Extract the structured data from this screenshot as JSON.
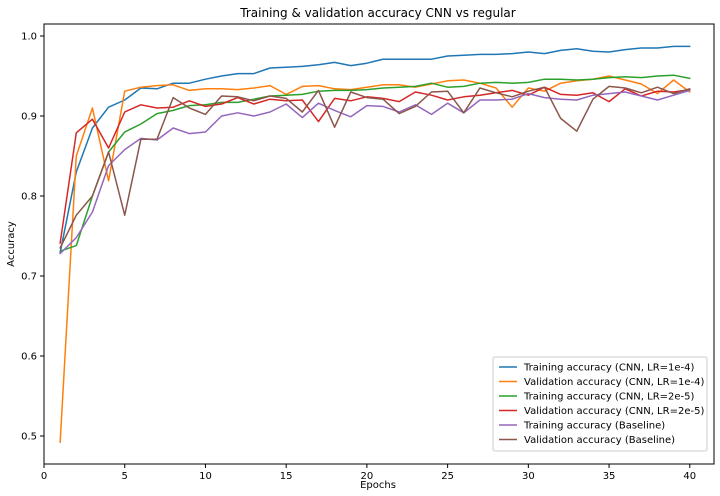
{
  "chart_data": {
    "type": "line",
    "title": "Training & validation accuracy CNN vs regular",
    "xlabel": "Epochs",
    "ylabel": "Accuracy",
    "xlim": [
      0,
      41.5
    ],
    "ylim": [
      0.465,
      1.015
    ],
    "xticks": [
      0,
      5,
      10,
      15,
      20,
      25,
      30,
      35,
      40
    ],
    "yticks": [
      0.5,
      0.6,
      0.7,
      0.8,
      0.9,
      1.0
    ],
    "ytick_labels": [
      "0.5",
      "0.6",
      "0.7",
      "0.8",
      "0.9",
      "1.0"
    ],
    "grid": false,
    "legend_position": "lower-right",
    "x": [
      1,
      2,
      3,
      4,
      5,
      6,
      7,
      8,
      9,
      10,
      11,
      12,
      13,
      14,
      15,
      16,
      17,
      18,
      19,
      20,
      21,
      22,
      23,
      24,
      25,
      26,
      27,
      28,
      29,
      30,
      31,
      32,
      33,
      34,
      35,
      36,
      37,
      38,
      39,
      40
    ],
    "series": [
      {
        "name": "Training accuracy (CNN, LR=1e-4)",
        "color": "#1f77b4",
        "values": [
          0.729,
          0.83,
          0.885,
          0.911,
          0.92,
          0.935,
          0.934,
          0.941,
          0.941,
          0.946,
          0.95,
          0.953,
          0.953,
          0.96,
          0.961,
          0.962,
          0.964,
          0.967,
          0.963,
          0.966,
          0.971,
          0.971,
          0.971,
          0.971,
          0.975,
          0.976,
          0.977,
          0.977,
          0.978,
          0.98,
          0.978,
          0.982,
          0.984,
          0.981,
          0.98,
          0.983,
          0.985,
          0.985,
          0.987,
          0.987
        ]
      },
      {
        "name": "Validation accuracy (CNN, LR=1e-4)",
        "color": "#ff7f0e",
        "values": [
          0.492,
          0.85,
          0.91,
          0.819,
          0.931,
          0.936,
          0.938,
          0.939,
          0.932,
          0.934,
          0.934,
          0.933,
          0.935,
          0.938,
          0.927,
          0.937,
          0.938,
          0.934,
          0.933,
          0.936,
          0.939,
          0.939,
          0.936,
          0.94,
          0.944,
          0.945,
          0.941,
          0.935,
          0.911,
          0.935,
          0.931,
          0.941,
          0.944,
          0.946,
          0.95,
          0.945,
          0.94,
          0.928,
          0.945,
          0.93
        ]
      },
      {
        "name": "Training accuracy (CNN, LR=2e-5)",
        "color": "#2ca02c",
        "values": [
          0.731,
          0.738,
          0.8,
          0.855,
          0.88,
          0.89,
          0.903,
          0.907,
          0.913,
          0.914,
          0.917,
          0.917,
          0.921,
          0.925,
          0.926,
          0.927,
          0.931,
          0.932,
          0.932,
          0.933,
          0.935,
          0.936,
          0.937,
          0.941,
          0.936,
          0.937,
          0.941,
          0.942,
          0.941,
          0.942,
          0.946,
          0.946,
          0.945,
          0.946,
          0.948,
          0.949,
          0.948,
          0.95,
          0.951,
          0.947
        ]
      },
      {
        "name": "Validation accuracy (CNN, LR=2e-5)",
        "color": "#d62728",
        "values": [
          0.741,
          0.879,
          0.896,
          0.86,
          0.905,
          0.914,
          0.91,
          0.911,
          0.919,
          0.912,
          0.915,
          0.923,
          0.915,
          0.921,
          0.919,
          0.92,
          0.893,
          0.922,
          0.919,
          0.924,
          0.922,
          0.918,
          0.93,
          0.926,
          0.92,
          0.924,
          0.926,
          0.929,
          0.932,
          0.926,
          0.936,
          0.927,
          0.926,
          0.929,
          0.918,
          0.934,
          0.925,
          0.931,
          0.93,
          0.933
        ]
      },
      {
        "name": "Training accuracy (Baseline)",
        "color": "#9467bd",
        "values": [
          0.728,
          0.748,
          0.78,
          0.838,
          0.858,
          0.872,
          0.87,
          0.885,
          0.878,
          0.88,
          0.9,
          0.904,
          0.9,
          0.905,
          0.915,
          0.898,
          0.916,
          0.907,
          0.899,
          0.913,
          0.912,
          0.905,
          0.914,
          0.902,
          0.916,
          0.904,
          0.92,
          0.92,
          0.921,
          0.928,
          0.923,
          0.921,
          0.92,
          0.926,
          0.928,
          0.93,
          0.925,
          0.92,
          0.926,
          0.932
        ]
      },
      {
        "name": "Validation accuracy (Baseline)",
        "color": "#8c564b",
        "values": [
          0.735,
          0.776,
          0.8,
          0.855,
          0.776,
          0.871,
          0.871,
          0.923,
          0.91,
          0.902,
          0.925,
          0.924,
          0.919,
          0.925,
          0.922,
          0.905,
          0.932,
          0.886,
          0.93,
          0.923,
          0.921,
          0.903,
          0.912,
          0.93,
          0.931,
          0.904,
          0.935,
          0.929,
          0.924,
          0.931,
          0.936,
          0.897,
          0.881,
          0.921,
          0.937,
          0.935,
          0.929,
          0.936,
          0.928,
          0.934
        ]
      }
    ]
  }
}
